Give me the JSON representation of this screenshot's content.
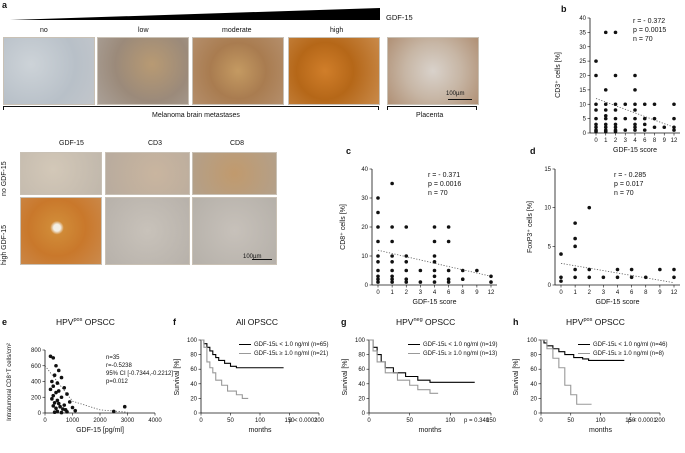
{
  "panel_a": {
    "label": "a",
    "gradient_label": "GDF-15",
    "grades": [
      "no",
      "low",
      "moderate",
      "high"
    ],
    "group_label": "Melanoma brain metastases",
    "placenta_label": "Placenta",
    "scale_bar": "100µm",
    "markers": [
      "GDF-15",
      "CD3",
      "CD8"
    ],
    "row_labels": [
      "no GDF-15",
      "high GDF-15"
    ],
    "scale_bar_2": "100µm"
  },
  "panel_b": {
    "label": "b",
    "r": "r = - 0.372",
    "p": "p =  0.0015",
    "n": "n = 70"
  },
  "panel_c": {
    "label": "c",
    "r": "r = - 0.371",
    "p": "p =  0.0016",
    "n": "n = 70"
  },
  "panel_d": {
    "label": "d",
    "r": "r = - 0.285",
    "p": "p =  0.017",
    "n": "n = 70"
  },
  "panel_e": {
    "label": "e",
    "title_pre": "HPV",
    "title_sup": "pos",
    "title_post": " OPSCC",
    "stats": [
      "n=35",
      "r=-0.5238",
      "95% CI [-0.7344,-0.2212]",
      "p=0.012"
    ]
  },
  "panel_f": {
    "label": "f",
    "title": "All OPSCC",
    "legend": [
      "GDF-15ʟ < 1.0 ng/ml (n=65)",
      "GDF-15ʟ ≥ 1.0 ng/ml (n=21)"
    ],
    "p": "p < 0.0001"
  },
  "panel_g": {
    "label": "g",
    "title_pre": "HPV",
    "title_sup": "neg",
    "title_post": " OPSCC",
    "legend": [
      "GDF-15ʟ < 1.0 ng/ml (n=19)",
      "GDF-15ʟ ≥ 1.0 ng/ml (n=13)"
    ],
    "p": "p = 0.340"
  },
  "panel_h": {
    "label": "h",
    "title_pre": "HPV",
    "title_sup": "pos",
    "title_post": " OPSCC",
    "legend": [
      "GDF-15ʟ < 1.0 ng/ml (n=46)",
      "GDF-15ʟ ≥ 1.0 ng/ml (n=8)"
    ],
    "p": "p < 0.0001"
  },
  "chart_data": [
    {
      "id": "b",
      "type": "scatter",
      "xlabel": "GDF-15 score",
      "ylabel": "CD3⁺ cells [%]",
      "categories": [
        "0",
        "1",
        "2",
        "3",
        "4",
        "6",
        "8",
        "9",
        "12"
      ],
      "ylim": [
        0,
        40
      ],
      "yticks": [
        0,
        5,
        10,
        15,
        20,
        25,
        30,
        35,
        40
      ],
      "points": [
        [
          0,
          25
        ],
        [
          0,
          20
        ],
        [
          0,
          10
        ],
        [
          0,
          8
        ],
        [
          0,
          5
        ],
        [
          0,
          3
        ],
        [
          0,
          2
        ],
        [
          0,
          1
        ],
        [
          0,
          0.5
        ],
        [
          1,
          35
        ],
        [
          1,
          15
        ],
        [
          1,
          10
        ],
        [
          1,
          8
        ],
        [
          1,
          6
        ],
        [
          1,
          5
        ],
        [
          1,
          3
        ],
        [
          1,
          2
        ],
        [
          1,
          1
        ],
        [
          1,
          0.5
        ],
        [
          2,
          35
        ],
        [
          2,
          20
        ],
        [
          2,
          10
        ],
        [
          2,
          8
        ],
        [
          2,
          5
        ],
        [
          2,
          3
        ],
        [
          2,
          2
        ],
        [
          2,
          1
        ],
        [
          2,
          0.5
        ],
        [
          3,
          10
        ],
        [
          3,
          5
        ],
        [
          3,
          1
        ],
        [
          4,
          20
        ],
        [
          4,
          15
        ],
        [
          4,
          10
        ],
        [
          4,
          8
        ],
        [
          4,
          5
        ],
        [
          4,
          3
        ],
        [
          4,
          2
        ],
        [
          4,
          1
        ],
        [
          6,
          10
        ],
        [
          6,
          5
        ],
        [
          6,
          3
        ],
        [
          6,
          1
        ],
        [
          8,
          10
        ],
        [
          8,
          5
        ],
        [
          8,
          2
        ],
        [
          9,
          2
        ],
        [
          12,
          10
        ],
        [
          12,
          5
        ],
        [
          12,
          2
        ],
        [
          12,
          1
        ]
      ],
      "trend": [
        [
          0,
          12
        ],
        [
          12,
          2
        ]
      ]
    },
    {
      "id": "c",
      "type": "scatter",
      "xlabel": "GDF-15 score",
      "ylabel": "CD8⁺ cells [%]",
      "categories": [
        "0",
        "1",
        "2",
        "3",
        "4",
        "6",
        "8",
        "9",
        "12"
      ],
      "ylim": [
        0,
        40
      ],
      "yticks": [
        0,
        10,
        20,
        30,
        40
      ],
      "points": [
        [
          0,
          30
        ],
        [
          0,
          25
        ],
        [
          0,
          20
        ],
        [
          0,
          15
        ],
        [
          0,
          10
        ],
        [
          0,
          8
        ],
        [
          0,
          5
        ],
        [
          0,
          3
        ],
        [
          0,
          2
        ],
        [
          0,
          1
        ],
        [
          1,
          35
        ],
        [
          1,
          20
        ],
        [
          1,
          15
        ],
        [
          1,
          10
        ],
        [
          1,
          8
        ],
        [
          1,
          5
        ],
        [
          1,
          3
        ],
        [
          1,
          2
        ],
        [
          1,
          1
        ],
        [
          2,
          20
        ],
        [
          2,
          10
        ],
        [
          2,
          8
        ],
        [
          2,
          5
        ],
        [
          2,
          2
        ],
        [
          2,
          1
        ],
        [
          3,
          5
        ],
        [
          3,
          1
        ],
        [
          4,
          20
        ],
        [
          4,
          15
        ],
        [
          4,
          10
        ],
        [
          4,
          8
        ],
        [
          4,
          5
        ],
        [
          4,
          3
        ],
        [
          4,
          1
        ],
        [
          6,
          20
        ],
        [
          6,
          15
        ],
        [
          6,
          5
        ],
        [
          6,
          2
        ],
        [
          6,
          1
        ],
        [
          8,
          5
        ],
        [
          8,
          2
        ],
        [
          9,
          5
        ],
        [
          12,
          3
        ],
        [
          12,
          1
        ]
      ],
      "trend": [
        [
          0,
          12
        ],
        [
          12,
          3
        ]
      ]
    },
    {
      "id": "d",
      "type": "scatter",
      "xlabel": "GDF-15 score",
      "ylabel": "FoxP3⁺ cells [%]",
      "categories": [
        "0",
        "1",
        "2",
        "3",
        "4",
        "6",
        "8",
        "9",
        "12"
      ],
      "ylim": [
        0,
        15
      ],
      "yticks": [
        0,
        5,
        10,
        15
      ],
      "points": [
        [
          0,
          4
        ],
        [
          0,
          1
        ],
        [
          0,
          0.5
        ],
        [
          1,
          8
        ],
        [
          1,
          6
        ],
        [
          1,
          5
        ],
        [
          1,
          2
        ],
        [
          1,
          1
        ],
        [
          2,
          10
        ],
        [
          2,
          2
        ],
        [
          2,
          1
        ],
        [
          3,
          1
        ],
        [
          4,
          2
        ],
        [
          4,
          1
        ],
        [
          6,
          2
        ],
        [
          6,
          1
        ],
        [
          8,
          1
        ],
        [
          9,
          2
        ],
        [
          12,
          2
        ],
        [
          12,
          1
        ]
      ],
      "trend": [
        [
          0,
          2.8
        ],
        [
          12,
          0.3
        ]
      ]
    },
    {
      "id": "e",
      "type": "scatter",
      "xlabel": "GDF-15 [pg/ml]",
      "ylabel": "Intratumoral CD8⁺T cells/cm²",
      "xlim": [
        0,
        4000
      ],
      "xticks": [
        0,
        1000,
        2000,
        3000,
        4000
      ],
      "ylim": [
        0,
        800
      ],
      "yticks": [
        0,
        200,
        400,
        600,
        800
      ],
      "points": [
        [
          200,
          720
        ],
        [
          300,
          700
        ],
        [
          400,
          600
        ],
        [
          500,
          540
        ],
        [
          350,
          480
        ],
        [
          600,
          450
        ],
        [
          250,
          400
        ],
        [
          450,
          380
        ],
        [
          300,
          340
        ],
        [
          700,
          320
        ],
        [
          200,
          300
        ],
        [
          500,
          280
        ],
        [
          400,
          260
        ],
        [
          800,
          240
        ],
        [
          300,
          220
        ],
        [
          600,
          200
        ],
        [
          250,
          180
        ],
        [
          450,
          160
        ],
        [
          900,
          140
        ],
        [
          350,
          130
        ],
        [
          500,
          120
        ],
        [
          700,
          100
        ],
        [
          300,
          90
        ],
        [
          550,
          80
        ],
        [
          1000,
          70
        ],
        [
          400,
          60
        ],
        [
          650,
          50
        ],
        [
          750,
          40
        ],
        [
          1100,
          30
        ],
        [
          450,
          20
        ],
        [
          2500,
          20
        ],
        [
          2900,
          80
        ],
        [
          350,
          10
        ],
        [
          800,
          15
        ],
        [
          600,
          5
        ]
      ],
      "trend": [
        [
          0,
          600
        ],
        [
          1000,
          150
        ],
        [
          2000,
          40
        ],
        [
          3000,
          10
        ]
      ]
    },
    {
      "id": "f",
      "type": "line",
      "xlabel": "months",
      "ylabel": "Survival [%]",
      "xlim": [
        0,
        200
      ],
      "xticks": [
        0,
        50,
        100,
        150,
        200
      ],
      "ylim": [
        0,
        100
      ],
      "yticks": [
        0,
        20,
        40,
        60,
        80,
        100
      ],
      "series": [
        {
          "name": "GDF-15ʟ < 1.0 ng/ml (n=65)",
          "color": "#000000",
          "x": [
            0,
            5,
            10,
            15,
            20,
            25,
            30,
            40,
            50,
            60,
            140
          ],
          "y": [
            100,
            95,
            90,
            85,
            80,
            76,
            72,
            68,
            64,
            62,
            62
          ]
        },
        {
          "name": "GDF-15ʟ ≥ 1.0 ng/ml (n=21)",
          "color": "#999999",
          "x": [
            0,
            5,
            10,
            15,
            20,
            25,
            35,
            45,
            60,
            70,
            80
          ],
          "y": [
            100,
            90,
            70,
            62,
            55,
            45,
            38,
            30,
            25,
            20,
            20
          ]
        }
      ]
    },
    {
      "id": "g",
      "type": "line",
      "xlabel": "months",
      "ylabel": "Survival [%]",
      "xlim": [
        0,
        150
      ],
      "xticks": [
        0,
        50,
        100,
        150
      ],
      "ylim": [
        0,
        100
      ],
      "yticks": [
        0,
        20,
        40,
        60,
        80,
        100
      ],
      "series": [
        {
          "name": "GDF-15ʟ < 1.0 ng/ml (n=19)",
          "color": "#000000",
          "x": [
            0,
            5,
            10,
            15,
            20,
            30,
            45,
            60,
            75,
            130
          ],
          "y": [
            100,
            90,
            80,
            70,
            62,
            55,
            50,
            45,
            42,
            42
          ]
        },
        {
          "name": "GDF-15ʟ ≥ 1.0 ng/ml (n=13)",
          "color": "#999999",
          "x": [
            0,
            5,
            10,
            20,
            35,
            50,
            60,
            75,
            85
          ],
          "y": [
            100,
            85,
            70,
            55,
            45,
            38,
            32,
            27,
            27
          ]
        }
      ]
    },
    {
      "id": "h",
      "type": "line",
      "xlabel": "months",
      "ylabel": "Survival [%]",
      "xlim": [
        0,
        200
      ],
      "xticks": [
        0,
        50,
        100,
        150,
        200
      ],
      "ylim": [
        0,
        100
      ],
      "yticks": [
        0,
        20,
        40,
        60,
        80,
        100
      ],
      "series": [
        {
          "name": "GDF-15ʟ < 1.0 ng/ml (n=46)",
          "color": "#000000",
          "x": [
            0,
            5,
            10,
            20,
            30,
            40,
            55,
            70,
            80,
            140
          ],
          "y": [
            100,
            96,
            92,
            88,
            84,
            80,
            76,
            74,
            72,
            72
          ]
        },
        {
          "name": "GDF-15ʟ ≥ 1.0 ng/ml (n=8)",
          "color": "#999999",
          "x": [
            0,
            10,
            20,
            30,
            40,
            50,
            60,
            85
          ],
          "y": [
            100,
            88,
            75,
            62,
            38,
            25,
            12,
            12
          ]
        }
      ]
    }
  ]
}
